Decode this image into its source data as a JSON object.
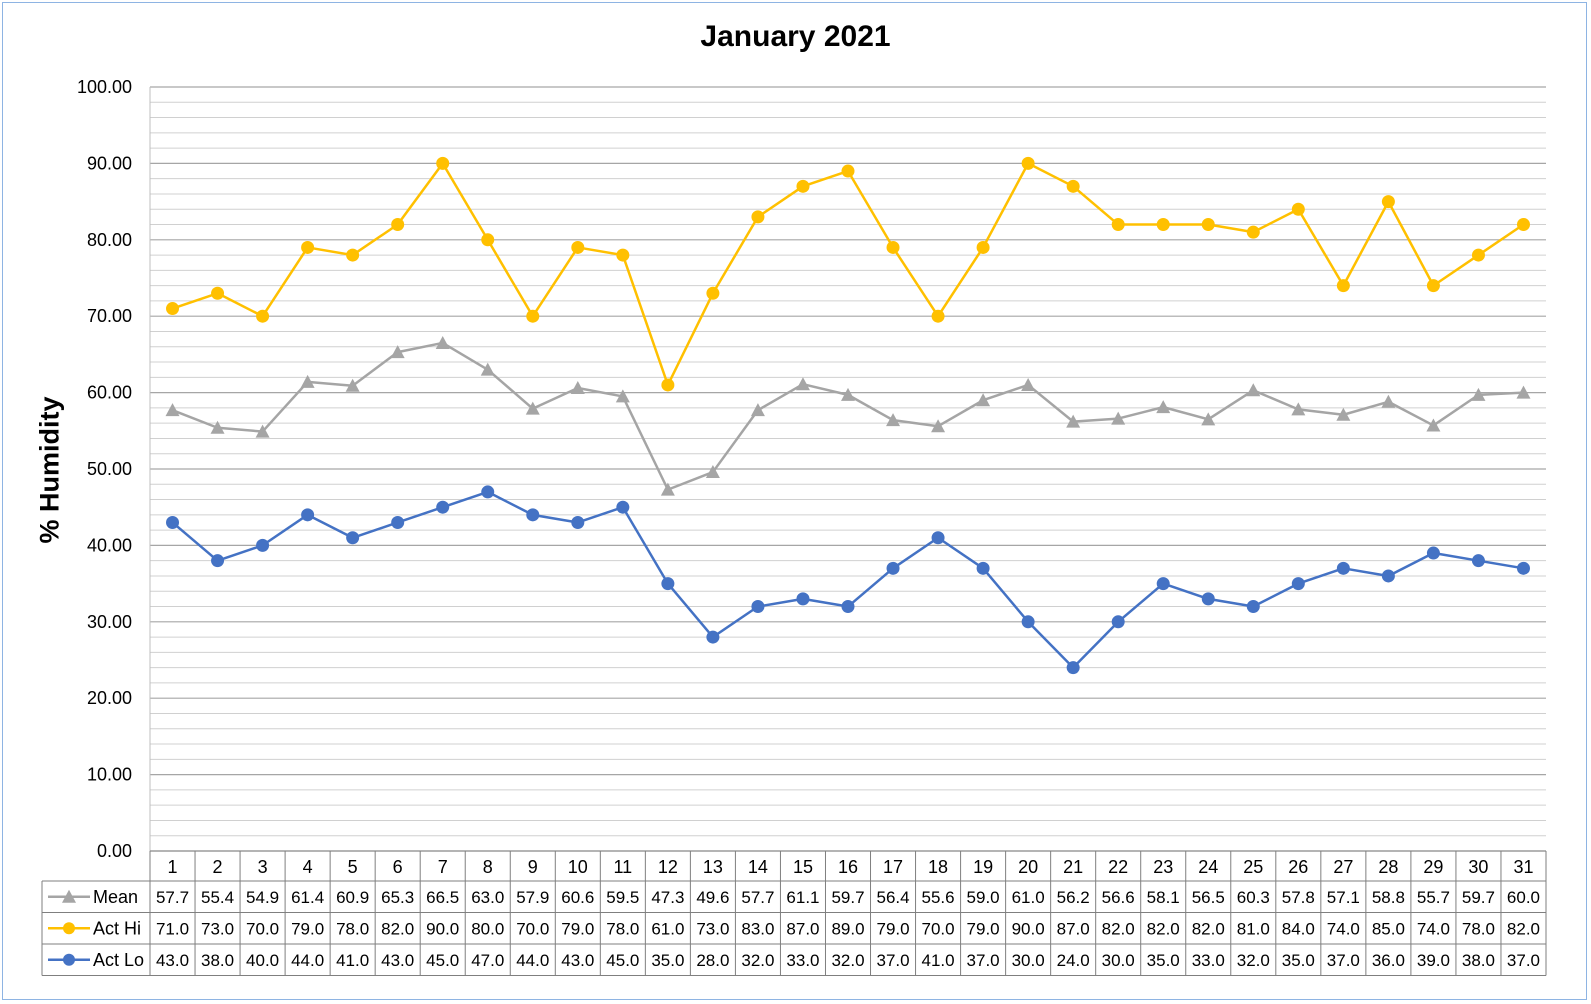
{
  "chart_data": {
    "type": "line",
    "title": "January 2021",
    "xlabel": "",
    "ylabel": "% Humidity",
    "ylim": [
      0,
      100
    ],
    "y_ticks": [
      "0.00",
      "10.00",
      "20.00",
      "30.00",
      "40.00",
      "50.00",
      "60.00",
      "70.00",
      "80.00",
      "90.00",
      "100.00"
    ],
    "grid": true,
    "legend": "data-table",
    "categories": [
      "1",
      "2",
      "3",
      "4",
      "5",
      "6",
      "7",
      "8",
      "9",
      "10",
      "11",
      "12",
      "13",
      "14",
      "15",
      "16",
      "17",
      "18",
      "19",
      "20",
      "21",
      "22",
      "23",
      "24",
      "25",
      "26",
      "27",
      "28",
      "29",
      "30",
      "31"
    ],
    "series": [
      {
        "name": "Mean",
        "color": "#a5a5a5",
        "marker": "triangle",
        "values": [
          57.7,
          55.4,
          54.9,
          61.4,
          60.9,
          65.3,
          66.5,
          63.0,
          57.9,
          60.6,
          59.5,
          47.3,
          49.6,
          57.7,
          61.1,
          59.7,
          56.4,
          55.6,
          59.0,
          61.0,
          56.2,
          56.6,
          58.1,
          56.5,
          60.3,
          57.8,
          57.1,
          58.8,
          55.7,
          59.7,
          60.0
        ],
        "labels": [
          "57.7",
          "55.4",
          "54.9",
          "61.4",
          "60.9",
          "65.3",
          "66.5",
          "63.0",
          "57.9",
          "60.6",
          "59.5",
          "47.3",
          "49.6",
          "57.7",
          "61.1",
          "59.7",
          "56.4",
          "55.6",
          "59.0",
          "61.0",
          "56.2",
          "56.6",
          "58.1",
          "56.5",
          "60.3",
          "57.8",
          "57.1",
          "58.8",
          "55.7",
          "59.7",
          "60.0"
        ]
      },
      {
        "name": "Act Hi",
        "color": "#ffc000",
        "marker": "circle",
        "values": [
          71.0,
          73.0,
          70.0,
          79.0,
          78.0,
          82.0,
          90.0,
          80.0,
          70.0,
          79.0,
          78.0,
          61.0,
          73.0,
          83.0,
          87.0,
          89.0,
          79.0,
          70.0,
          79.0,
          90.0,
          87.0,
          82.0,
          82.0,
          82.0,
          81.0,
          84.0,
          74.0,
          85.0,
          74.0,
          78.0,
          82.0
        ],
        "labels": [
          "71.0",
          "73.0",
          "70.0",
          "79.0",
          "78.0",
          "82.0",
          "90.0",
          "80.0",
          "70.0",
          "79.0",
          "78.0",
          "61.0",
          "73.0",
          "83.0",
          "87.0",
          "89.0",
          "79.0",
          "70.0",
          "79.0",
          "90.0",
          "87.0",
          "82.0",
          "82.0",
          "82.0",
          "81.0",
          "84.0",
          "74.0",
          "85.0",
          "74.0",
          "78.0",
          "82.0"
        ]
      },
      {
        "name": "Act Lo",
        "color": "#4472c4",
        "marker": "circle",
        "values": [
          43.0,
          38.0,
          40.0,
          44.0,
          41.0,
          43.0,
          45.0,
          47.0,
          44.0,
          43.0,
          45.0,
          35.0,
          28.0,
          32.0,
          33.0,
          32.0,
          37.0,
          41.0,
          37.0,
          30.0,
          24.0,
          30.0,
          35.0,
          33.0,
          32.0,
          35.0,
          37.0,
          36.0,
          39.0,
          38.0,
          37.0
        ],
        "labels": [
          "43.0",
          "38.0",
          "40.0",
          "44.0",
          "41.0",
          "43.0",
          "45.0",
          "47.0",
          "44.0",
          "43.0",
          "45.0",
          "35.0",
          "28.0",
          "32.0",
          "33.0",
          "32.0",
          "37.0",
          "41.0",
          "37.0",
          "30.0",
          "24.0",
          "30.0",
          "35.0",
          "33.0",
          "32.0",
          "35.0",
          "37.0",
          "36.0",
          "39.0",
          "38.0",
          "37.0"
        ]
      }
    ]
  }
}
